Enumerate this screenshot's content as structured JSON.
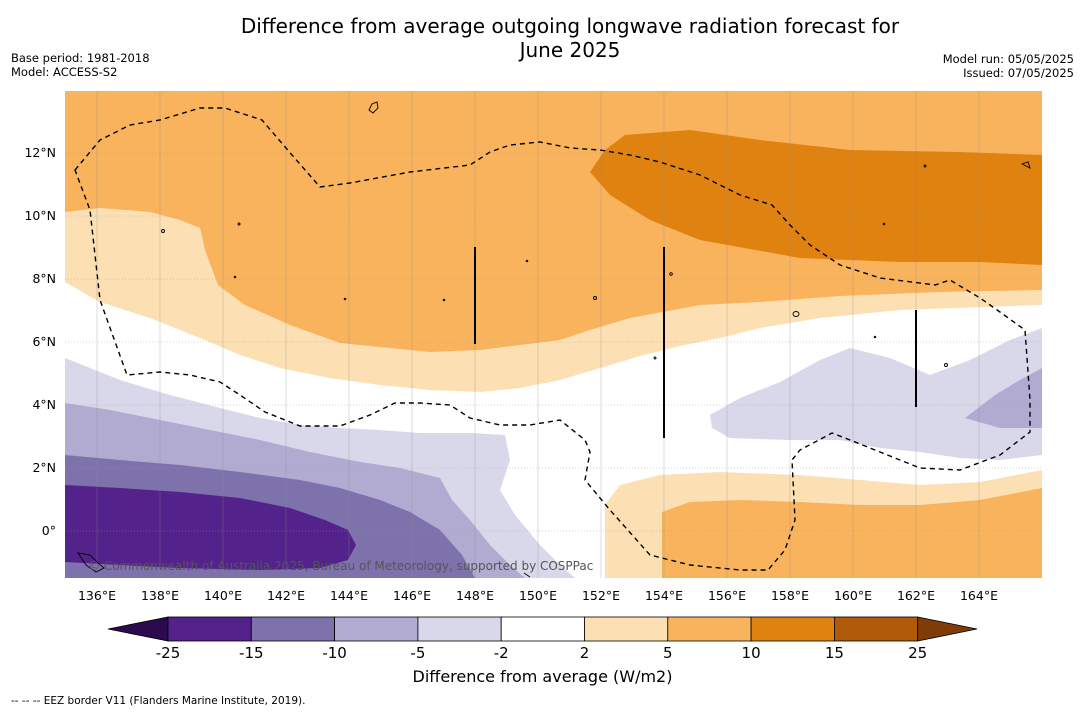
{
  "header": {
    "title_line1": "Difference from average outgoing longwave radiation forecast for",
    "title_line2": "June 2025",
    "base_period": "Base period: 1981-2018",
    "model": "Model: ACCESS-S2",
    "model_run": "Model run: 05/05/2025",
    "issued": "Issued: 07/05/2025"
  },
  "map": {
    "copyright": "© Commonwealth of Australia 2025, Bureau of Meteorology, supported by COSPPac",
    "lon_ticks": [
      "136°E",
      "138°E",
      "140°E",
      "142°E",
      "144°E",
      "146°E",
      "148°E",
      "150°E",
      "152°E",
      "154°E",
      "156°E",
      "158°E",
      "160°E",
      "162°E",
      "164°E"
    ],
    "lat_ticks": [
      "12°N",
      "10°N",
      "8°N",
      "6°N",
      "4°N",
      "2°N",
      "0°"
    ],
    "lon_range": [
      135,
      166
    ],
    "lat_range": [
      -1.5,
      14
    ],
    "colors": {
      "strong_positive": "#e0820f",
      "positive": "#f9b35c",
      "weak_positive": "#fce0b4",
      "neutral": "#ffffff",
      "weak_negative": "#d8d8ea",
      "negative": "#b1abd2",
      "strong_negative": "#7e72ad",
      "very_strong_negative": "#53238b"
    }
  },
  "colorbar": {
    "title": "Difference from average (W/m2)",
    "labels": [
      "-25",
      "-15",
      "-10",
      "-5",
      "-2",
      "2",
      "5",
      "10",
      "15",
      "25"
    ],
    "colors": [
      "#52218a",
      "#7e72ad",
      "#b1abd2",
      "#d8d8ea",
      "#ffffff",
      "#fce0b4",
      "#f9b35c",
      "#e0820f",
      "#b05a0a"
    ],
    "extend_low_color": "#2d0a4e",
    "extend_high_color": "#7f3b08"
  },
  "footnote": "-- -- -- EEZ border V11 (Flanders Marine Institute, 2019)."
}
